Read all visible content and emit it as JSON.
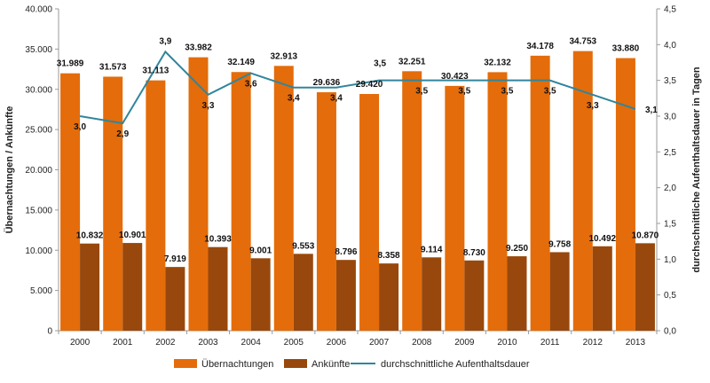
{
  "chart_data": {
    "type": "bar",
    "categories": [
      "2000",
      "2001",
      "2002",
      "2003",
      "2004",
      "2005",
      "2006",
      "2007",
      "2008",
      "2009",
      "2010",
      "2011",
      "2012",
      "2013"
    ],
    "series": [
      {
        "name": "Übernachtungen",
        "kind": "bar",
        "axis": "left",
        "color": "#E46C0A",
        "values": [
          31989,
          31573,
          31113,
          33982,
          32149,
          32913,
          29636,
          29420,
          32251,
          30423,
          32132,
          34178,
          34753,
          33880
        ],
        "labels": [
          "31.989",
          "31.573",
          "31.113",
          "33.982",
          "32.149",
          "32.913",
          "29.636",
          "29.420",
          "32.251",
          "30.423",
          "32.132",
          "34.178",
          "34.753",
          "33.880"
        ]
      },
      {
        "name": "Ankünfte",
        "kind": "bar",
        "axis": "left",
        "color": "#98480C",
        "values": [
          10832,
          10901,
          7919,
          10393,
          9001,
          9553,
          8796,
          8358,
          9114,
          8730,
          9250,
          9758,
          10492,
          10870
        ],
        "labels": [
          "10.832",
          "10.901",
          "7.919",
          "10.393",
          "9.001",
          "9.553",
          "8.796",
          "8.358",
          "9.114",
          "8.730",
          "9.250",
          "9.758",
          "10.492",
          "10.870"
        ]
      },
      {
        "name": "durchschnittliche Aufenthaltsdauer",
        "kind": "line",
        "axis": "right",
        "color": "#31859C",
        "values": [
          3.0,
          2.9,
          3.9,
          3.3,
          3.6,
          3.4,
          3.4,
          3.5,
          3.5,
          3.5,
          3.5,
          3.5,
          3.3,
          3.1
        ],
        "labels": [
          "3,0",
          "2,9",
          "3,9",
          "3,3",
          "3,6",
          "3,4",
          "3,4",
          "3,5",
          "3,5",
          "3,5",
          "3,5",
          "3,5",
          "3,3",
          "3,1"
        ]
      }
    ],
    "ylabel": "Übernachtungen / Ankünfte",
    "ylabel_right": "durchschnittliche Aufenthaltsdauer in Tagen",
    "ylim": [
      0,
      40000
    ],
    "ylim_right": [
      0,
      4.5
    ],
    "yticks_left": [
      "0",
      "5.000",
      "10.000",
      "15.000",
      "20.000",
      "25.000",
      "30.000",
      "35.000",
      "40.000"
    ],
    "yticks_right": [
      "0,0",
      "0,5",
      "1,0",
      "1,5",
      "2,0",
      "2,5",
      "3,0",
      "3,5",
      "4,0",
      "4,5"
    ],
    "grid": false,
    "legend": "bottom"
  }
}
